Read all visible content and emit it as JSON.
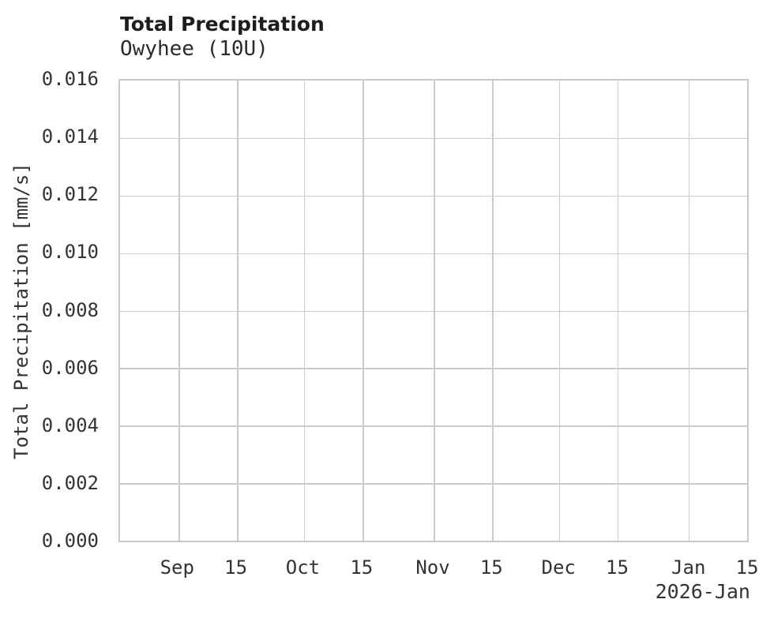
{
  "chart_data": {
    "type": "line",
    "title": "Total Precipitation",
    "subtitle": "Owyhee (10U)",
    "xlabel": "",
    "ylabel": "Total Precipitation [mm/s]",
    "ylim": [
      0.0,
      0.016
    ],
    "ytick_labels": [
      "0.000",
      "0.002",
      "0.004",
      "0.006",
      "0.008",
      "0.010",
      "0.012",
      "0.014",
      "0.016"
    ],
    "x_range": [
      "2025-08-18",
      "2026-01-15"
    ],
    "xticks": [
      {
        "label": "Sep",
        "date": "2025-09-01",
        "pos": 0.0933
      },
      {
        "label": "15",
        "date": "2025-09-15",
        "pos": 0.1867
      },
      {
        "label": "Oct",
        "date": "2025-10-01",
        "pos": 0.2933
      },
      {
        "label": "15",
        "date": "2025-10-15",
        "pos": 0.3867
      },
      {
        "label": "Nov",
        "date": "2025-11-01",
        "pos": 0.5
      },
      {
        "label": "15",
        "date": "2025-11-15",
        "pos": 0.5933
      },
      {
        "label": "Dec",
        "date": "2025-12-01",
        "pos": 0.7
      },
      {
        "label": "15",
        "date": "2025-12-15",
        "pos": 0.7933
      },
      {
        "label": "Jan",
        "date": "2026-01-01",
        "pos": 0.9067
      },
      {
        "label": "15",
        "date": "2026-01-15",
        "pos": 1.0
      }
    ],
    "x_offset_label": "2026-Jan",
    "grid": true,
    "legend": false,
    "series": []
  },
  "colors": {
    "background": "#ffffff",
    "grid": "#cccccc",
    "frame": "#c9c9c9",
    "title_text": "#1d1d1d",
    "tick_text": "#333333"
  }
}
